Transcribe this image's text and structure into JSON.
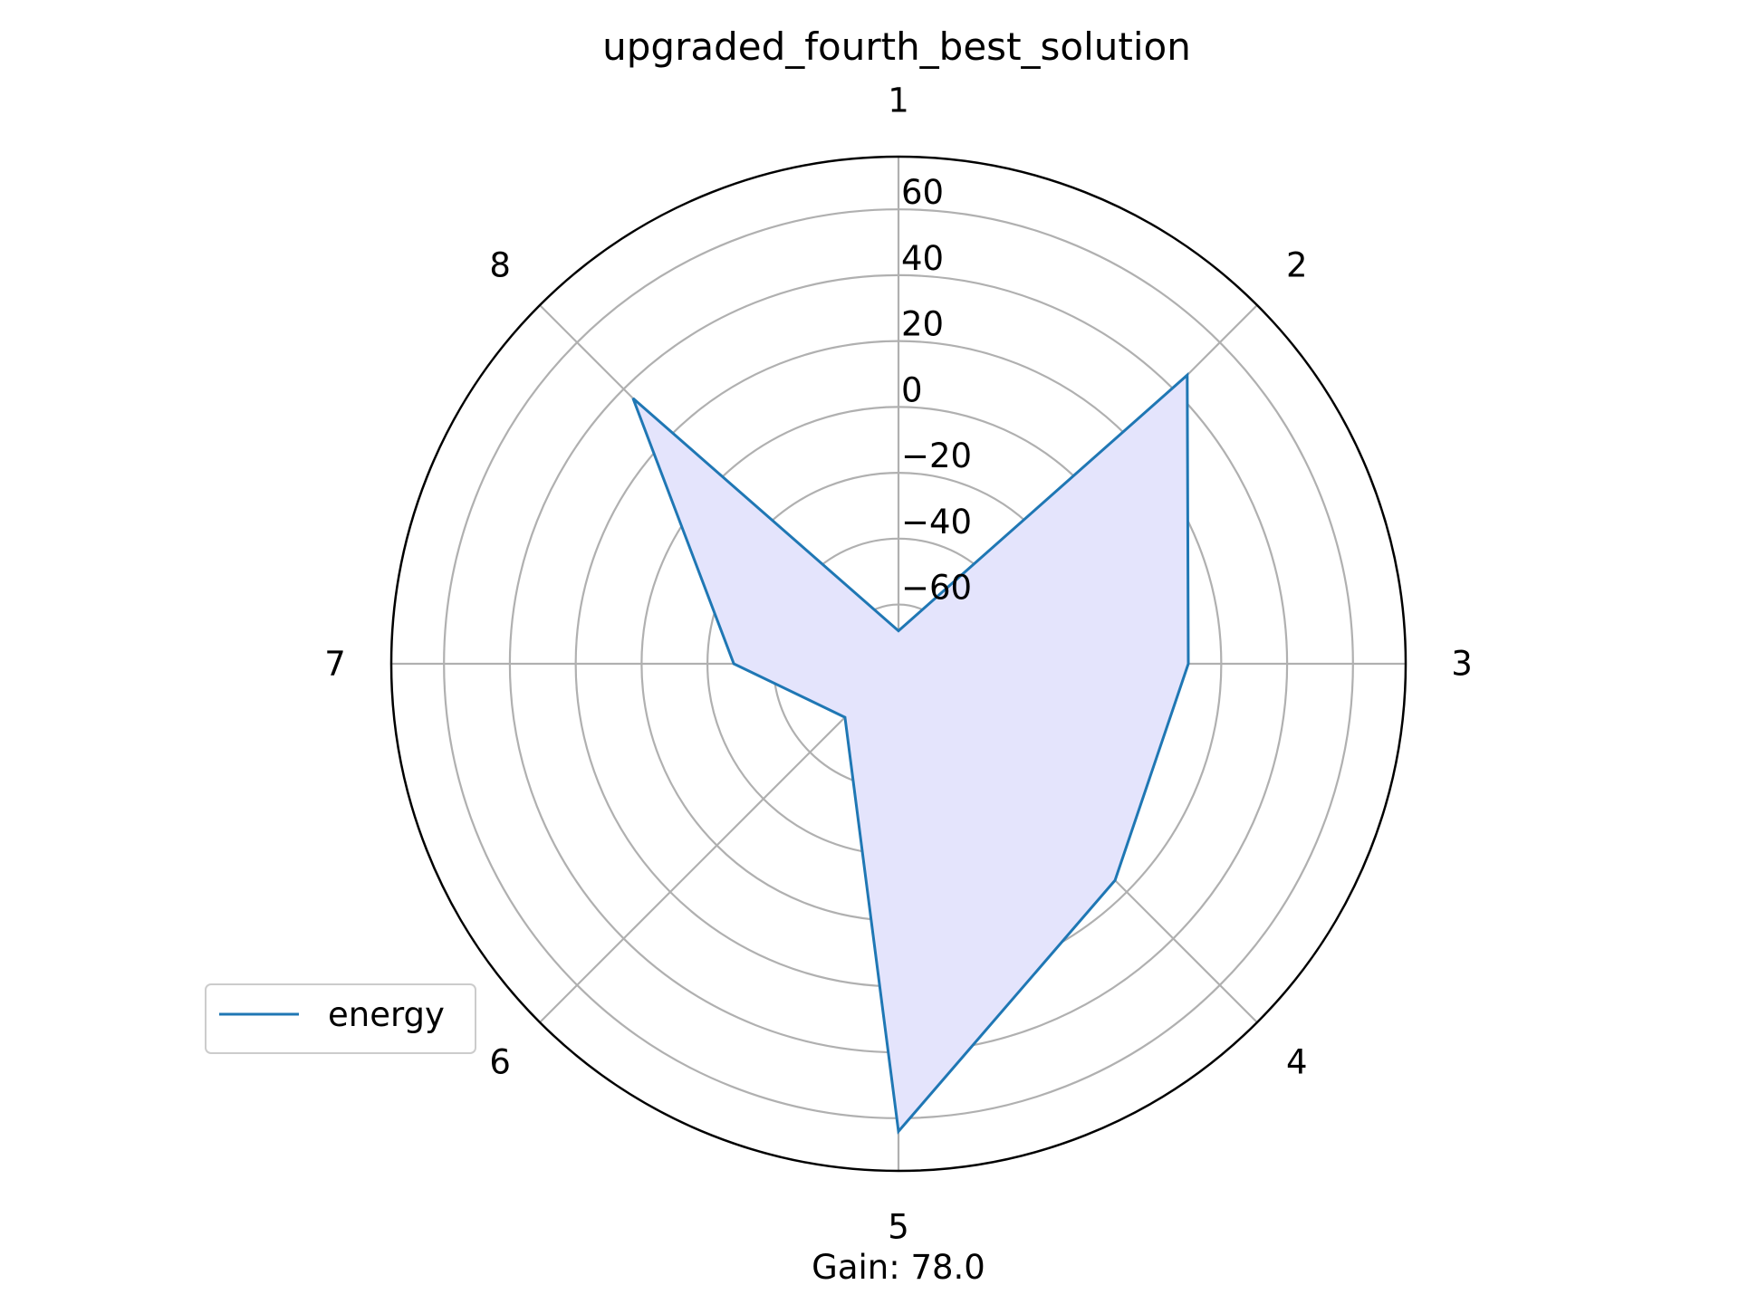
{
  "chart_data": {
    "type": "radar",
    "title": "upgraded_fourth_best_solution",
    "categories": [
      "1",
      "2",
      "3",
      "4",
      "5",
      "6",
      "7",
      "8"
    ],
    "series": [
      {
        "name": "energy",
        "values": [
          -68,
          46,
          10,
          15,
          64,
          -55,
          -28,
          36
        ]
      }
    ],
    "rlim": [
      -78,
      76
    ],
    "r_ticks": [
      -60,
      -40,
      -20,
      0,
      20,
      40,
      60
    ],
    "r_tick_labels": [
      "−60",
      "−40",
      "−20",
      "0",
      "20",
      "40",
      "60"
    ],
    "grid": true,
    "legend_position": "lower-left",
    "colors": {
      "line": "#1f77b4",
      "fill": "#e4e4fc",
      "grid": "#b0b0b0",
      "frame": "#000000"
    },
    "footer": "Gain: 78.0"
  }
}
